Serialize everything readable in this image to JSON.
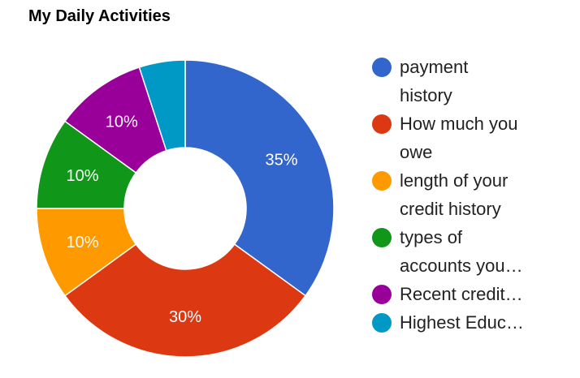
{
  "chart_data": {
    "type": "pie",
    "title": "My Daily Activities",
    "slices": [
      {
        "label": "payment history",
        "legend_lines": [
          "payment",
          "history"
        ],
        "value": 35,
        "data_label": "35%",
        "color": "#3366cc"
      },
      {
        "label": "How much you owe",
        "legend_lines": [
          "How much you",
          "owe"
        ],
        "value": 30,
        "data_label": "30%",
        "color": "#dc3912"
      },
      {
        "label": "length of your credit history",
        "legend_lines": [
          "length of your",
          "credit history"
        ],
        "value": 10,
        "data_label": "10%",
        "color": "#ff9900"
      },
      {
        "label": "types of accounts you…",
        "legend_lines": [
          "types of",
          "accounts you…"
        ],
        "value": 10,
        "data_label": "10%",
        "color": "#109618"
      },
      {
        "label": "Recent credit…",
        "legend_lines": [
          "Recent credit…"
        ],
        "value": 10,
        "data_label": "10%",
        "color": "#990099"
      },
      {
        "label": "Highest Educ…",
        "legend_lines": [
          "Highest Educ…"
        ],
        "value": 5,
        "data_label": "",
        "color": "#0099c6"
      }
    ],
    "donut": true,
    "legend_position": "right"
  }
}
